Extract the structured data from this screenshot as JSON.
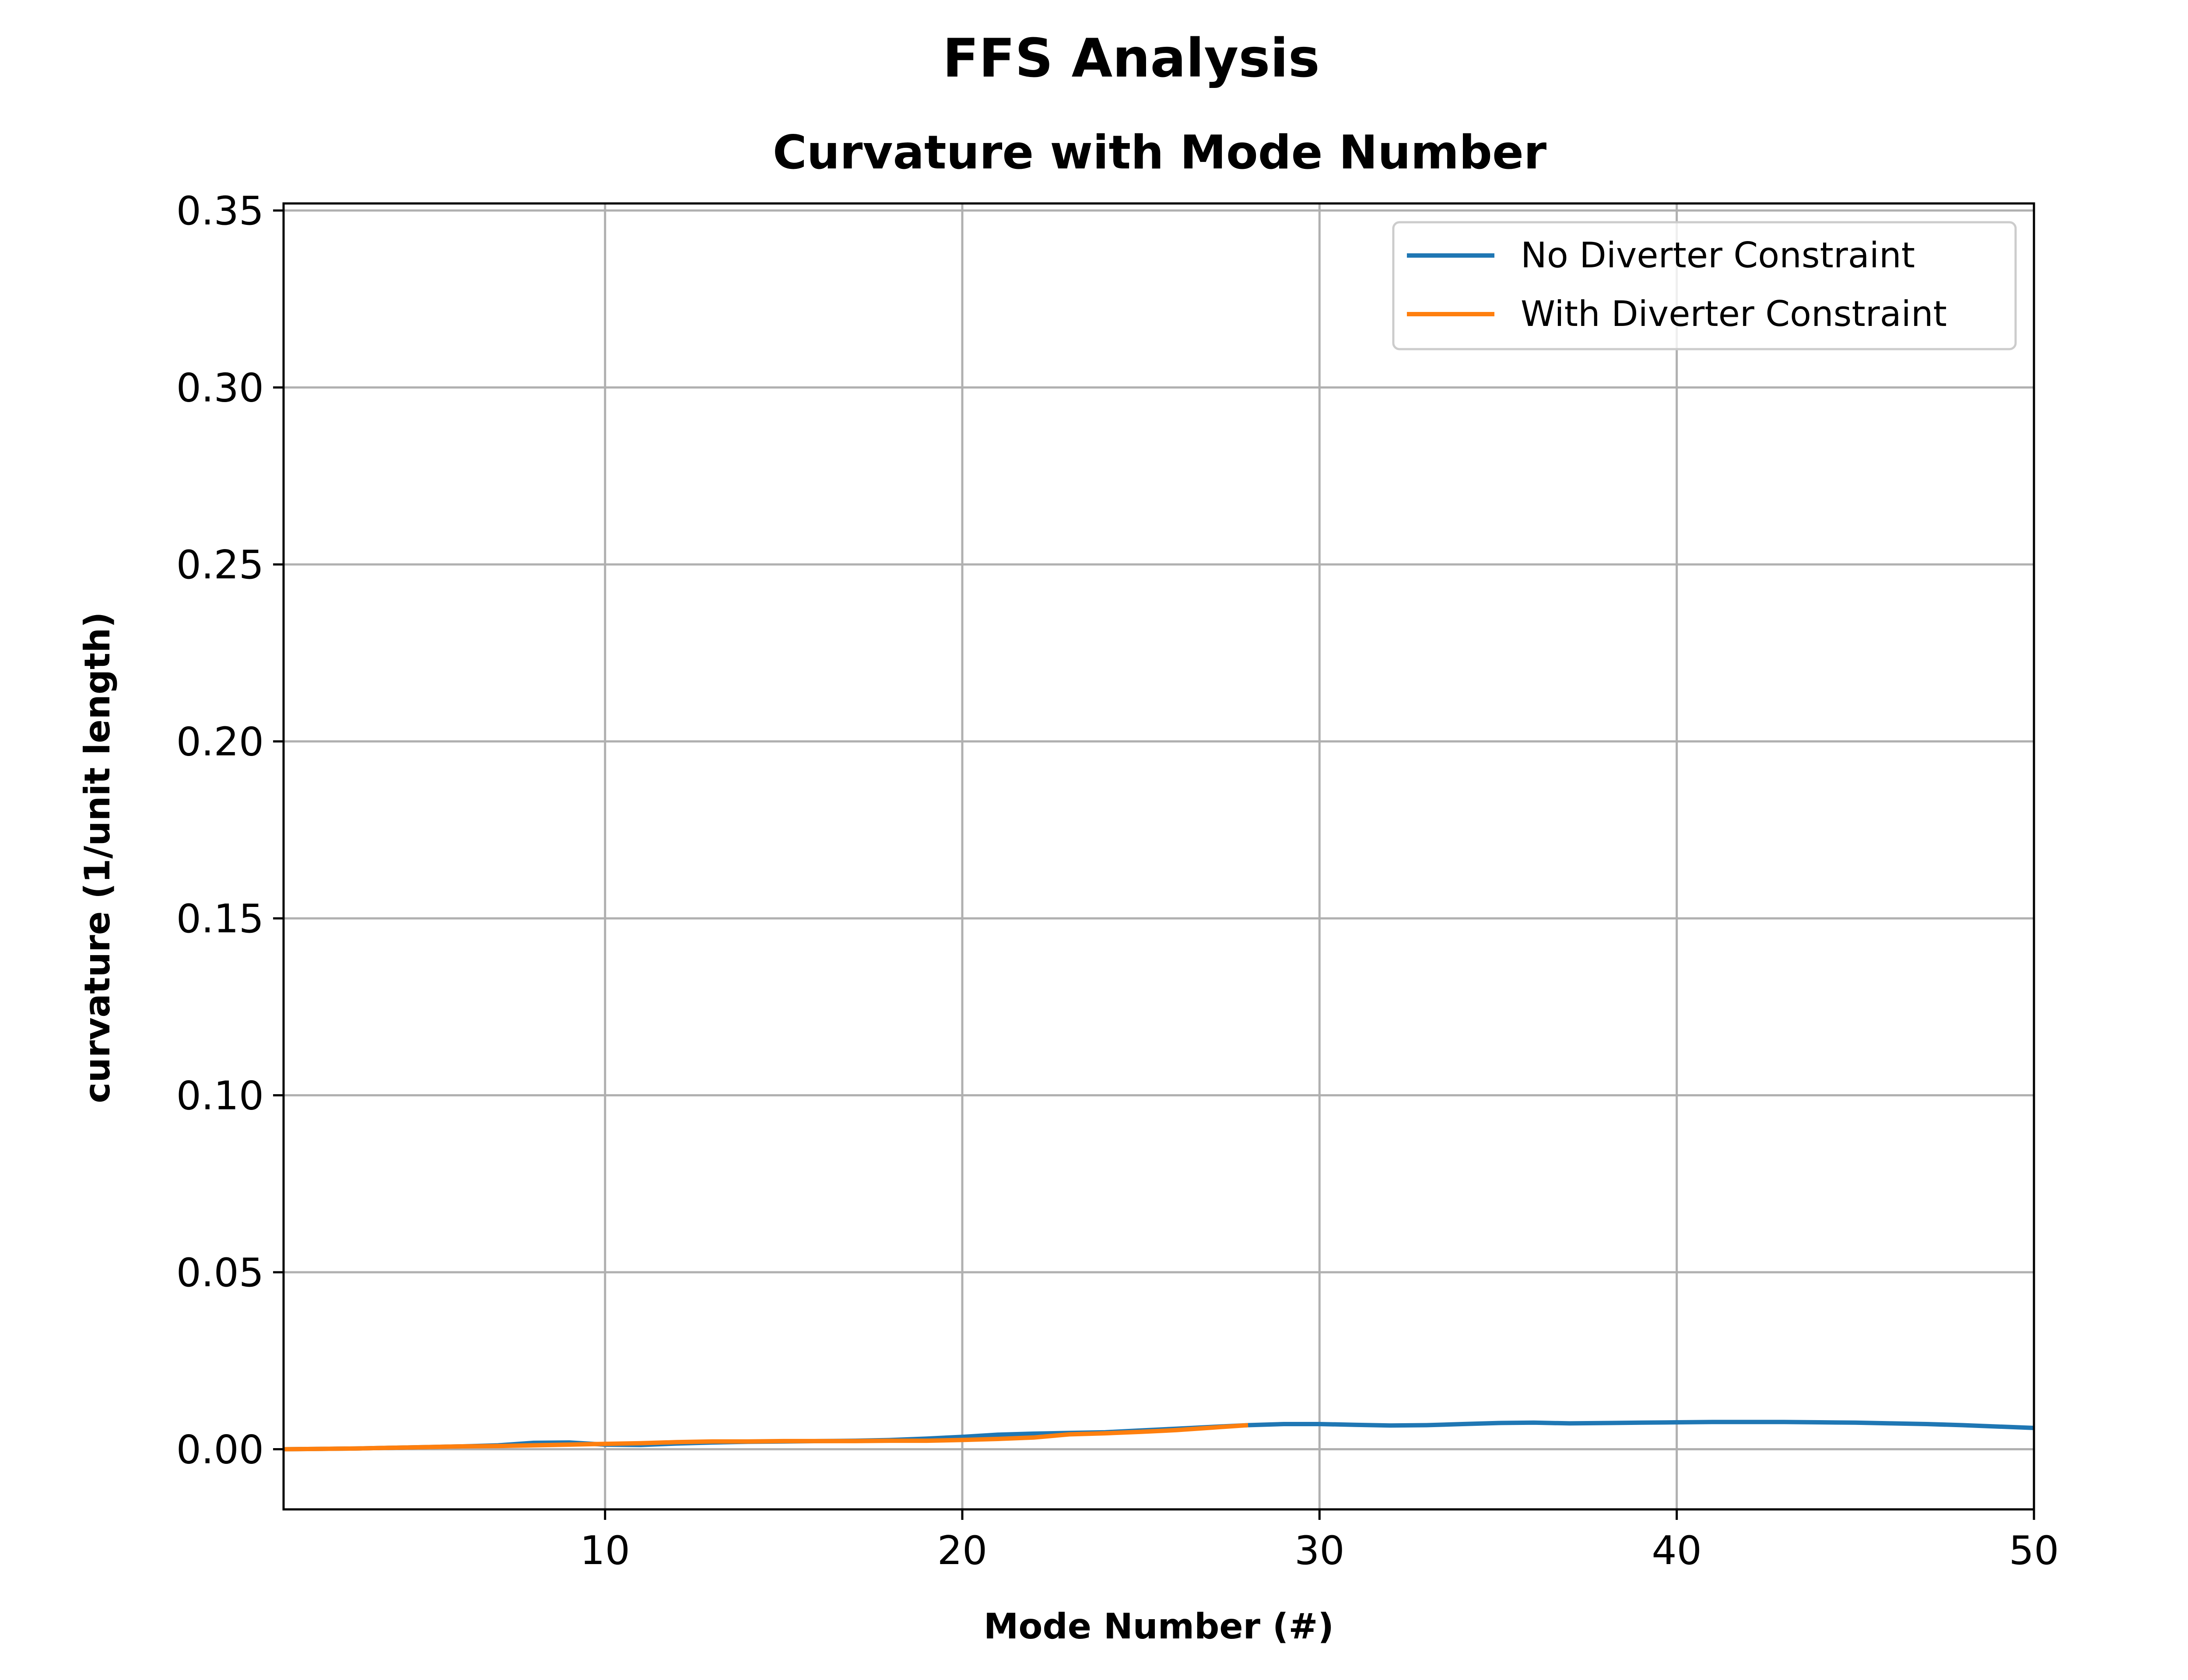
{
  "figure": {
    "suptitle": "FFS Analysis"
  },
  "chart_data": {
    "type": "line",
    "title": "Curvature with Mode Number",
    "xlabel": "Mode Number (#)",
    "ylabel": "curvature (1/unit length)",
    "xlim": [
      1,
      50
    ],
    "ylim": [
      -0.017,
      0.352
    ],
    "xticks": [
      10,
      20,
      30,
      40,
      50
    ],
    "xtick_labels": [
      "10",
      "20",
      "30",
      "40",
      "50"
    ],
    "yticks": [
      0.0,
      0.05,
      0.1,
      0.15,
      0.2,
      0.25,
      0.3,
      0.35
    ],
    "ytick_labels": [
      "0.00",
      "0.05",
      "0.10",
      "0.15",
      "0.20",
      "0.25",
      "0.30",
      "0.35"
    ],
    "grid": true,
    "legend": {
      "position": "upper right"
    },
    "series": [
      {
        "name": "No Diverter Constraint",
        "color": "#1f77b4",
        "x": [
          1,
          2,
          3,
          4,
          5,
          6,
          7,
          8,
          9,
          10,
          11,
          12,
          13,
          14,
          15,
          16,
          17,
          18,
          19,
          20,
          21,
          22,
          23,
          24,
          25,
          26,
          27,
          28,
          29,
          30,
          31,
          32,
          33,
          34,
          35,
          36,
          37,
          38,
          39,
          40,
          41,
          42,
          43,
          44,
          45,
          46,
          47,
          48,
          49,
          50
        ],
        "y": [
          0.0,
          0.0001,
          0.0002,
          0.0004,
          0.0006,
          0.0008,
          0.0011,
          0.0018,
          0.0019,
          0.0013,
          0.0012,
          0.0016,
          0.0019,
          0.0021,
          0.0022,
          0.0023,
          0.0024,
          0.0026,
          0.003,
          0.0035,
          0.0041,
          0.0044,
          0.0046,
          0.0048,
          0.0053,
          0.0058,
          0.0063,
          0.0068,
          0.0071,
          0.0071,
          0.0069,
          0.0067,
          0.0068,
          0.0071,
          0.0074,
          0.0075,
          0.0073,
          0.0074,
          0.0075,
          0.0076,
          0.0077,
          0.0077,
          0.0077,
          0.0076,
          0.0075,
          0.0073,
          0.0071,
          0.0068,
          0.0064,
          0.006
        ]
      },
      {
        "name": "With Diverter Constraint",
        "color": "#ff7f0e",
        "x": [
          1,
          2,
          3,
          4,
          5,
          6,
          7,
          8,
          9,
          10,
          11,
          12,
          13,
          14,
          15,
          16,
          17,
          18,
          19,
          20,
          21,
          22,
          23,
          24,
          25,
          26,
          27,
          28
        ],
        "y": [
          0.0,
          0.0001,
          0.0002,
          0.0004,
          0.0006,
          0.0008,
          0.0009,
          0.0011,
          0.0013,
          0.0015,
          0.0017,
          0.002,
          0.0022,
          0.0022,
          0.0023,
          0.0023,
          0.0023,
          0.0024,
          0.0024,
          0.0026,
          0.0029,
          0.0033,
          0.0042,
          0.0045,
          0.0049,
          0.0054,
          0.0061,
          0.0068
        ]
      }
    ]
  }
}
